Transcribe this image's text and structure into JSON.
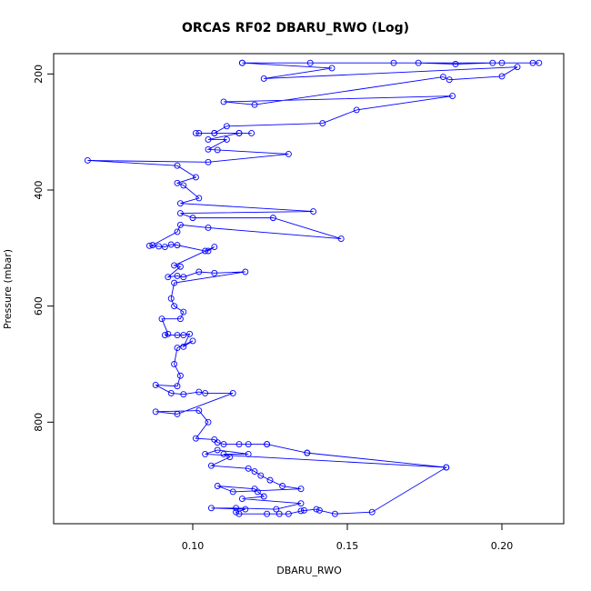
{
  "chart_data": {
    "type": "line",
    "title": "ORCAS RF02 DBARU_RWO (Log)",
    "xlabel": "DBARU_RWO",
    "ylabel": "Pressure (mbar)",
    "xlim": [
      0.055,
      0.22
    ],
    "ylim": [
      975,
      165
    ],
    "y_axis_reversed": true,
    "x_ticks": [
      0.1,
      0.15,
      0.2
    ],
    "x_tick_labels": [
      "0.10",
      "0.15",
      "0.20"
    ],
    "y_ticks": [
      200,
      400,
      600,
      800
    ],
    "y_tick_labels": [
      "200",
      "400",
      "600",
      "800"
    ],
    "grid": false,
    "series_color": "#0000ff",
    "series": [
      {
        "points": [
          [
            0.116,
            181
          ],
          [
            0.212,
            181
          ],
          [
            0.21,
            181
          ],
          [
            0.2,
            181
          ],
          [
            0.197,
            181
          ],
          [
            0.185,
            183
          ],
          [
            0.173,
            181
          ],
          [
            0.165,
            181
          ],
          [
            0.138,
            181
          ],
          [
            0.116,
            181
          ],
          [
            0.145,
            190
          ],
          [
            0.123,
            208
          ],
          [
            0.205,
            188
          ],
          [
            0.2,
            204
          ],
          [
            0.183,
            210
          ],
          [
            0.181,
            205
          ],
          [
            0.12,
            253
          ],
          [
            0.11,
            248
          ],
          [
            0.184,
            238
          ],
          [
            0.153,
            262
          ],
          [
            0.142,
            285
          ],
          [
            0.111,
            290
          ],
          [
            0.107,
            302
          ],
          [
            0.101,
            302
          ],
          [
            0.102,
            302
          ],
          [
            0.107,
            302
          ],
          [
            0.115,
            302
          ],
          [
            0.119,
            302
          ],
          [
            0.115,
            302
          ],
          [
            0.105,
            313
          ],
          [
            0.111,
            313
          ],
          [
            0.105,
            330
          ],
          [
            0.108,
            331
          ],
          [
            0.131,
            338
          ],
          [
            0.105,
            352
          ],
          [
            0.066,
            349
          ],
          [
            0.095,
            358
          ],
          [
            0.101,
            378
          ],
          [
            0.095,
            388
          ],
          [
            0.097,
            392
          ],
          [
            0.102,
            414
          ],
          [
            0.096,
            423
          ],
          [
            0.139,
            437
          ],
          [
            0.096,
            440
          ],
          [
            0.1,
            448
          ],
          [
            0.126,
            448
          ],
          [
            0.148,
            484
          ],
          [
            0.105,
            465
          ],
          [
            0.096,
            460
          ],
          [
            0.095,
            472
          ],
          [
            0.087,
            495
          ],
          [
            0.086,
            496
          ],
          [
            0.089,
            497
          ],
          [
            0.091,
            498
          ],
          [
            0.093,
            494
          ],
          [
            0.095,
            495
          ],
          [
            0.104,
            505
          ],
          [
            0.105,
            505
          ],
          [
            0.107,
            498
          ],
          [
            0.094,
            530
          ],
          [
            0.096,
            532
          ],
          [
            0.092,
            550
          ],
          [
            0.095,
            548
          ],
          [
            0.097,
            550
          ],
          [
            0.102,
            541
          ],
          [
            0.107,
            543
          ],
          [
            0.117,
            541
          ],
          [
            0.094,
            560
          ],
          [
            0.093,
            587
          ],
          [
            0.094,
            600
          ],
          [
            0.097,
            610
          ],
          [
            0.096,
            622
          ],
          [
            0.09,
            622
          ],
          [
            0.092,
            648
          ],
          [
            0.091,
            650
          ],
          [
            0.095,
            650
          ],
          [
            0.097,
            650
          ],
          [
            0.099,
            648
          ],
          [
            0.097,
            670
          ],
          [
            0.1,
            660
          ],
          [
            0.095,
            672
          ],
          [
            0.094,
            700
          ],
          [
            0.096,
            720
          ],
          [
            0.095,
            738
          ],
          [
            0.088,
            736
          ],
          [
            0.093,
            750
          ],
          [
            0.097,
            752
          ],
          [
            0.102,
            748
          ],
          [
            0.104,
            750
          ],
          [
            0.113,
            750
          ],
          [
            0.095,
            786
          ],
          [
            0.088,
            782
          ],
          [
            0.102,
            780
          ],
          [
            0.105,
            800
          ],
          [
            0.101,
            828
          ],
          [
            0.107,
            830
          ],
          [
            0.108,
            835
          ],
          [
            0.11,
            838
          ],
          [
            0.115,
            838
          ],
          [
            0.118,
            838
          ],
          [
            0.124,
            838
          ],
          [
            0.137,
            853
          ],
          [
            0.182,
            878
          ],
          [
            0.104,
            855
          ],
          [
            0.108,
            848
          ],
          [
            0.118,
            855
          ],
          [
            0.11,
            855
          ],
          [
            0.112,
            860
          ],
          [
            0.106,
            875
          ],
          [
            0.118,
            880
          ],
          [
            0.12,
            885
          ],
          [
            0.122,
            892
          ],
          [
            0.125,
            900
          ],
          [
            0.129,
            910
          ],
          [
            0.135,
            915
          ],
          [
            0.113,
            920
          ],
          [
            0.108,
            910
          ],
          [
            0.12,
            915
          ],
          [
            0.121,
            920
          ],
          [
            0.123,
            928
          ],
          [
            0.116,
            932
          ],
          [
            0.135,
            940
          ],
          [
            0.127,
            950
          ],
          [
            0.114,
            948
          ],
          [
            0.106,
            948
          ],
          [
            0.117,
            950
          ],
          [
            0.114,
            955
          ],
          [
            0.115,
            958
          ],
          [
            0.124,
            958
          ],
          [
            0.128,
            958
          ],
          [
            0.131,
            958
          ],
          [
            0.136,
            952
          ],
          [
            0.135,
            953
          ],
          [
            0.14,
            950
          ],
          [
            0.141,
            952
          ],
          [
            0.146,
            958
          ],
          [
            0.158,
            955
          ],
          [
            0.182,
            878
          ],
          [
            0.137,
            853
          ],
          [
            0.124,
            838
          ]
        ]
      }
    ]
  }
}
